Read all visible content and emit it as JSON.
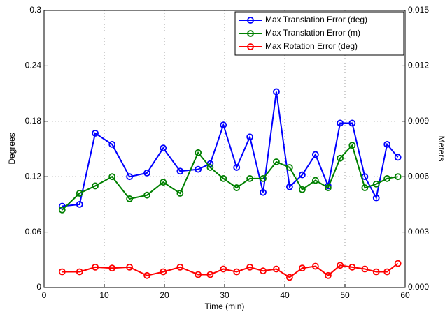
{
  "chart_data": {
    "type": "line",
    "xlabel": "Time (min)",
    "ylabel": "Degrees",
    "y2label": "Meters",
    "x": [
      3.0,
      5.9,
      8.5,
      11.3,
      14.2,
      17.1,
      19.8,
      22.6,
      25.6,
      27.6,
      29.8,
      32.0,
      34.2,
      36.4,
      38.6,
      40.8,
      42.9,
      45.1,
      47.2,
      49.2,
      51.2,
      53.3,
      55.2,
      57.0,
      58.8
    ],
    "series": [
      {
        "name": "Max Translation Error (deg)",
        "color": "#0000ff",
        "values": [
          0.088,
          0.09,
          0.167,
          0.155,
          0.12,
          0.124,
          0.151,
          0.126,
          0.128,
          0.134,
          0.176,
          0.13,
          0.163,
          0.103,
          0.212,
          0.109,
          0.122,
          0.144,
          0.11,
          0.178,
          0.178,
          0.12,
          0.097,
          0.155,
          0.141
        ]
      },
      {
        "name": "Max Translation Error (m)",
        "color": "#008000",
        "axis": "y2",
        "values": [
          0.0042,
          0.0051,
          0.0055,
          0.006,
          0.0048,
          0.005,
          0.0057,
          0.0051,
          0.0073,
          0.0065,
          0.0059,
          0.0054,
          0.0059,
          0.0059,
          0.0068,
          0.0065,
          0.0053,
          0.0058,
          0.0054,
          0.007,
          0.0077,
          0.0054,
          0.0056,
          0.0059,
          0.006
        ]
      },
      {
        "name": "Max Rotation Error (deg)",
        "color": "#ff0000",
        "values": [
          0.017,
          0.017,
          0.022,
          0.021,
          0.022,
          0.013,
          0.017,
          0.022,
          0.014,
          0.014,
          0.02,
          0.017,
          0.022,
          0.018,
          0.02,
          0.011,
          0.021,
          0.023,
          0.013,
          0.024,
          0.022,
          0.02,
          0.017,
          0.017,
          0.026
        ]
      }
    ],
    "xlim": [
      0,
      60
    ],
    "xticks": [
      0,
      10,
      20,
      30,
      40,
      50,
      60
    ],
    "ylim": [
      0,
      0.3
    ],
    "yticks": [
      0,
      0.06,
      0.12,
      0.18,
      0.24,
      0.3
    ],
    "y2lim": [
      0,
      0.015
    ],
    "y2ticks": [
      {
        "value": 0,
        "label": "0.000"
      },
      {
        "value": 0.003,
        "label": "0.003"
      },
      {
        "value": 0.006,
        "label": "0.006"
      },
      {
        "value": 0.009,
        "label": "0.009"
      },
      {
        "value": 0.012,
        "label": "0.012"
      },
      {
        "value": 0.015,
        "label": "0.015"
      }
    ],
    "grid": true,
    "legend": "upper right"
  }
}
